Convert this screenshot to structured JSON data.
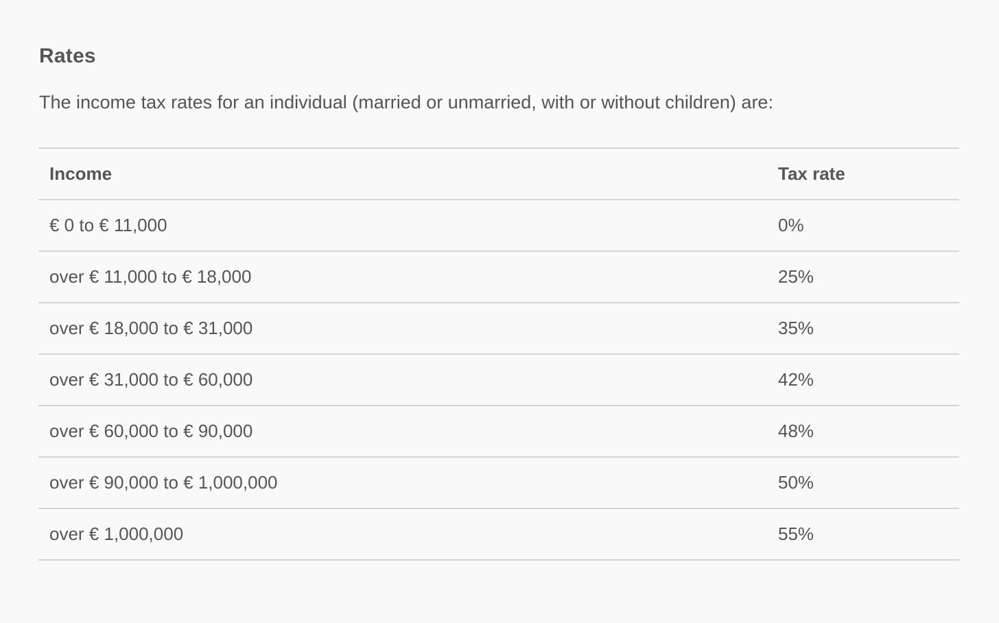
{
  "section": {
    "title": "Rates",
    "intro": "The income tax rates for an individual (married or unmarried, with or without children) are:"
  },
  "table": {
    "headers": {
      "income": "Income",
      "rate": "Tax rate"
    },
    "rows": [
      {
        "income": "€ 0 to € 11,000",
        "rate": "0%"
      },
      {
        "income": "over € 11,000 to € 18,000",
        "rate": "25%"
      },
      {
        "income": "over € 18,000 to € 31,000",
        "rate": "35%"
      },
      {
        "income": "over € 31,000 to € 60,000",
        "rate": "42%"
      },
      {
        "income": "over € 60,000 to € 90,000",
        "rate": "48%"
      },
      {
        "income": "over € 90,000 to € 1,000,000",
        "rate": "50%"
      },
      {
        "income": "over € 1,000,000",
        "rate": "55%"
      }
    ]
  },
  "colors": {
    "background": "#f9f9f9",
    "text": "#555555",
    "divider": "#d3d3dc"
  }
}
